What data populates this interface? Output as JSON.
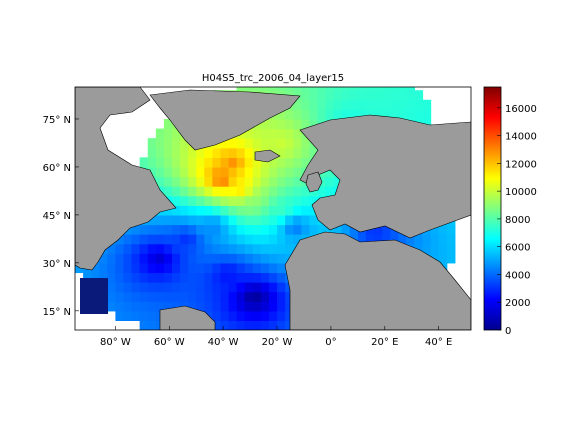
{
  "chart_data": {
    "type": "heatmap",
    "title": "H04S5_trc_2006_04_layer15",
    "xlabel": "",
    "ylabel": "",
    "xlim": [
      -95,
      52
    ],
    "ylim": [
      9,
      85
    ],
    "x_ticks": [
      {
        "value": -80,
        "label": "80° W"
      },
      {
        "value": -60,
        "label": "60° W"
      },
      {
        "value": -40,
        "label": "40° W"
      },
      {
        "value": -20,
        "label": "20° W"
      },
      {
        "value": 0,
        "label": "0°"
      },
      {
        "value": 20,
        "label": "20° E"
      },
      {
        "value": 40,
        "label": "40° E"
      }
    ],
    "y_ticks": [
      {
        "value": 15,
        "label": "15° N"
      },
      {
        "value": 30,
        "label": "30° N"
      },
      {
        "value": 45,
        "label": "45° N"
      },
      {
        "value": 60,
        "label": "60° N"
      },
      {
        "value": 75,
        "label": "75° N"
      }
    ],
    "colorbar": {
      "colormap": "jet",
      "range": [
        0,
        17500
      ],
      "ticks": [
        0,
        2000,
        4000,
        6000,
        8000,
        10000,
        12000,
        14000,
        16000
      ]
    },
    "regions": [
      {
        "lat": 60,
        "lon": -38,
        "value": 12800
      },
      {
        "lat": 55,
        "lon": -42,
        "value": 13500
      },
      {
        "lat": 52,
        "lon": -35,
        "value": 11500
      },
      {
        "lat": 48,
        "lon": -30,
        "value": 9000
      },
      {
        "lat": 45,
        "lon": -20,
        "value": 7500
      },
      {
        "lat": 66,
        "lon": -20,
        "value": 10000
      },
      {
        "lat": 40,
        "lon": -45,
        "value": 4500
      },
      {
        "lat": 36,
        "lon": -55,
        "value": 3000
      },
      {
        "lat": 30,
        "lon": -65,
        "value": 1500
      },
      {
        "lat": 25,
        "lon": -40,
        "value": 2500
      },
      {
        "lat": 18,
        "lon": -30,
        "value": 500
      },
      {
        "lat": 40,
        "lon": -15,
        "value": 4200
      },
      {
        "lat": 72,
        "lon": 5,
        "value": 7000
      },
      {
        "lat": 38,
        "lon": 15,
        "value": 3000
      }
    ]
  }
}
